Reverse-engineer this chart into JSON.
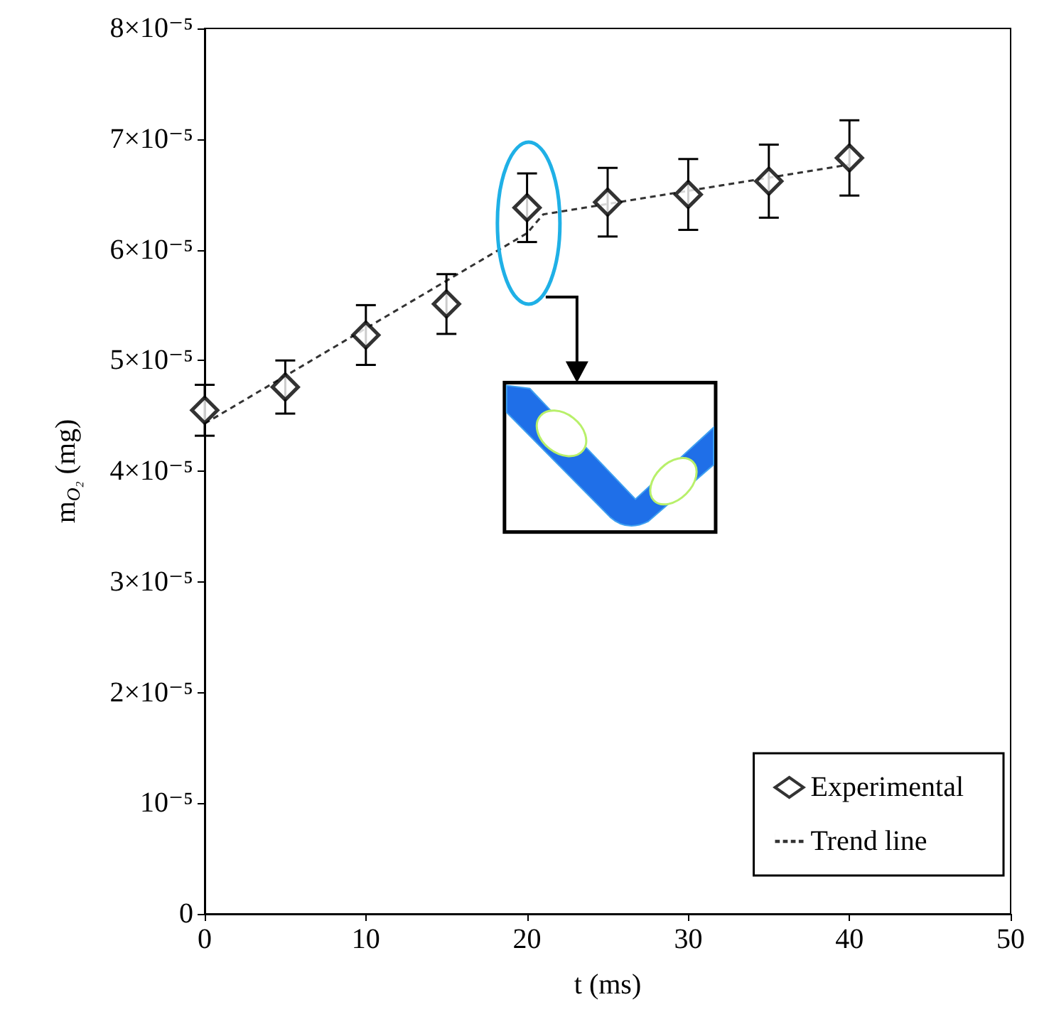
{
  "chart_data": {
    "type": "scatter",
    "xlabel": "t (ms)",
    "ylabel": "m$_{O₂}$ (mg)",
    "xlim": [
      0,
      50
    ],
    "xticks": [
      0,
      10,
      20,
      30,
      40,
      50
    ],
    "ylim": [
      0,
      8e-05
    ],
    "yticks": [
      0,
      {
        "value": 1e-05,
        "label": "10⁻⁵"
      },
      {
        "value": 2e-05,
        "label": "2×10⁻⁵"
      },
      {
        "value": 3e-05,
        "label": "3×10⁻⁵"
      },
      {
        "value": 4e-05,
        "label": "4×10⁻⁵"
      },
      {
        "value": 5e-05,
        "label": "5×10⁻⁵"
      },
      {
        "value": 6e-05,
        "label": "6×10⁻⁵"
      },
      {
        "value": 7e-05,
        "label": "7×10⁻⁵"
      },
      {
        "value": 8e-05,
        "label": "8×10⁻⁵"
      }
    ],
    "series": [
      {
        "name": "Experimental",
        "marker": "diamond",
        "color": "#000000",
        "x": [
          0,
          5,
          10,
          15,
          20,
          25,
          30,
          35,
          40
        ],
        "values": [
          4.55e-05,
          4.76e-05,
          5.23e-05,
          5.51e-05,
          6.38e-05,
          6.43e-05,
          6.5e-05,
          6.62e-05,
          6.83e-05
        ],
        "errors": [
          2.3e-06,
          2.4e-06,
          2.7e-06,
          2.7e-06,
          3.1e-06,
          3.1e-06,
          3.2e-06,
          3.3e-06,
          3.4e-06
        ]
      },
      {
        "name": "Trend line",
        "type": "line",
        "line_style": "dashed",
        "marker": "none",
        "color": "#333333",
        "x": [
          0,
          20,
          21,
          40
        ],
        "values": [
          4.43e-05,
          6.15e-05,
          6.32e-05,
          6.77e-05
        ]
      }
    ],
    "legend": "bottom right",
    "grid": false
  }
}
